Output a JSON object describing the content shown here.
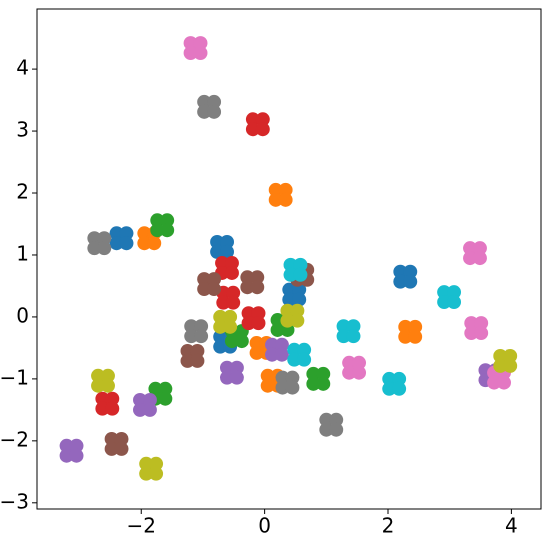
{
  "chart_data": {
    "type": "scatter",
    "xlim": [
      -3.69,
      4.48
    ],
    "ylim": [
      -3.1,
      4.97
    ],
    "xticks": [
      {
        "value": -2,
        "label": "−2"
      },
      0,
      2,
      4
    ],
    "yticks": [
      {
        "value": -3,
        "label": "−3"
      },
      {
        "value": -2,
        "label": "−2"
      },
      {
        "value": -1,
        "label": "−1"
      },
      0,
      1,
      2,
      3,
      4
    ],
    "grid": false,
    "series": [
      {
        "color": "#1f77b4",
        "x": [
          -2.4,
          -2.24,
          -2.4,
          -2.24,
          -0.77,
          -0.61,
          -0.77,
          -0.61,
          2.2,
          2.36,
          2.2,
          2.36,
          0.4,
          0.56,
          0.4,
          0.56,
          -0.72,
          -0.56,
          -0.72,
          -0.56
        ],
        "values": [
          1.35,
          1.35,
          1.19,
          1.19,
          1.21,
          1.21,
          1.05,
          1.05,
          0.73,
          0.73,
          0.57,
          0.57,
          0.44,
          0.44,
          0.28,
          0.28,
          -0.32,
          -0.32,
          -0.48,
          -0.48
        ]
      },
      {
        "color": "#ff7f0e",
        "x": [
          0.18,
          0.34,
          0.18,
          0.34,
          -1.95,
          -1.79,
          -1.95,
          -1.79,
          2.28,
          2.44,
          2.28,
          2.44,
          0.05,
          0.21,
          0.05,
          0.21,
          -0.13,
          0.03,
          -0.13,
          0.03
        ],
        "values": [
          2.05,
          2.05,
          1.89,
          1.89,
          1.35,
          1.35,
          1.19,
          1.19,
          -0.16,
          -0.16,
          -0.32,
          -0.32,
          -0.95,
          -0.95,
          -1.11,
          -1.11,
          -0.42,
          -0.42,
          -0.58,
          -0.58
        ]
      },
      {
        "color": "#2ca02c",
        "x": [
          -1.74,
          -1.58,
          -1.74,
          -1.58,
          0.21,
          0.37,
          0.21,
          0.37,
          -0.53,
          -0.37,
          -0.53,
          -0.37,
          0.79,
          0.95,
          0.79,
          0.95,
          -1.77,
          -1.61,
          -1.77,
          -1.61
        ],
        "values": [
          1.56,
          1.56,
          1.4,
          1.4,
          -0.05,
          -0.05,
          -0.21,
          -0.21,
          -0.23,
          -0.23,
          -0.39,
          -0.39,
          -0.92,
          -0.92,
          -1.08,
          -1.08,
          -1.16,
          -1.16,
          -1.32,
          -1.32
        ]
      },
      {
        "color": "#d62728",
        "x": [
          -0.19,
          -0.03,
          -0.19,
          -0.03,
          -0.69,
          -0.53,
          -0.69,
          -0.53,
          -0.67,
          -0.51,
          -0.67,
          -0.51,
          -0.26,
          -0.1,
          -0.26,
          -0.1,
          -2.63,
          -2.47,
          -2.63,
          -2.47
        ],
        "values": [
          3.19,
          3.19,
          3.03,
          3.03,
          0.87,
          0.87,
          0.71,
          0.71,
          0.39,
          0.39,
          0.23,
          0.23,
          0.06,
          0.06,
          -0.1,
          -0.1,
          -1.32,
          -1.32,
          -1.48,
          -1.48
        ]
      },
      {
        "color": "#9467bd",
        "x": [
          -3.21,
          -3.05,
          -3.21,
          -3.05,
          -2.02,
          -1.86,
          -2.02,
          -1.86,
          -0.61,
          -0.45,
          -0.61,
          -0.45,
          0.12,
          0.28,
          0.12,
          0.28,
          3.58,
          3.74,
          3.58,
          3.74
        ],
        "values": [
          -2.08,
          -2.08,
          -2.24,
          -2.24,
          -1.34,
          -1.34,
          -1.5,
          -1.5,
          -0.82,
          -0.82,
          -0.98,
          -0.98,
          -0.45,
          -0.45,
          -0.61,
          -0.61,
          -0.86,
          -0.86,
          -1.02,
          -1.02
        ]
      },
      {
        "color": "#8c564b",
        "x": [
          -0.98,
          -0.82,
          -0.98,
          -0.82,
          -0.28,
          -0.12,
          -0.28,
          -0.12,
          0.53,
          0.69,
          0.53,
          0.69,
          -1.25,
          -1.09,
          -1.25,
          -1.09,
          -2.48,
          -2.32,
          -2.48,
          -2.32
        ],
        "values": [
          0.61,
          0.61,
          0.45,
          0.45,
          0.64,
          0.64,
          0.48,
          0.48,
          0.76,
          0.76,
          0.6,
          0.6,
          -0.55,
          -0.55,
          -0.71,
          -0.71,
          -1.97,
          -1.97,
          -2.13,
          -2.13
        ]
      },
      {
        "color": "#e377c2",
        "x": [
          -1.2,
          -1.04,
          -1.2,
          -1.04,
          3.33,
          3.49,
          3.33,
          3.49,
          3.35,
          3.51,
          3.35,
          3.51,
          1.37,
          1.53,
          1.37,
          1.53,
          3.72,
          3.88,
          3.72,
          3.88
        ],
        "values": [
          4.42,
          4.42,
          4.26,
          4.26,
          1.11,
          1.11,
          0.95,
          0.95,
          -0.1,
          -0.1,
          -0.26,
          -0.26,
          -0.74,
          -0.74,
          -0.9,
          -0.9,
          -0.9,
          -0.9,
          -1.06,
          -1.06
        ]
      },
      {
        "color": "#7f7f7f",
        "x": [
          -0.98,
          -0.82,
          -0.98,
          -0.82,
          -2.76,
          -2.6,
          -2.76,
          -2.6,
          -1.19,
          -1.03,
          -1.19,
          -1.03,
          0.29,
          0.45,
          0.29,
          0.45,
          1.0,
          1.16,
          1.0,
          1.16
        ],
        "values": [
          3.47,
          3.47,
          3.31,
          3.31,
          1.27,
          1.27,
          1.11,
          1.11,
          -0.15,
          -0.15,
          -0.31,
          -0.31,
          -0.98,
          -0.98,
          -1.14,
          -1.14,
          -1.66,
          -1.66,
          -1.82,
          -1.82
        ]
      },
      {
        "color": "#bcbd22",
        "x": [
          -0.72,
          -0.56,
          -0.72,
          -0.56,
          0.37,
          0.53,
          0.37,
          0.53,
          -2.7,
          -2.54,
          -2.7,
          -2.54,
          -1.92,
          -1.76,
          -1.92,
          -1.76,
          3.82,
          3.98,
          3.82,
          3.98
        ],
        "values": [
          0,
          0,
          -0.16,
          -0.16,
          0.1,
          0.1,
          -0.06,
          -0.06,
          -0.95,
          -0.95,
          -1.11,
          -1.11,
          -2.37,
          -2.37,
          -2.53,
          -2.53,
          -0.63,
          -0.63,
          -0.79,
          -0.79
        ]
      },
      {
        "color": "#17becf",
        "x": [
          0.42,
          0.58,
          0.42,
          0.58,
          1.28,
          1.44,
          1.28,
          1.44,
          2.91,
          3.07,
          2.91,
          3.07,
          0.48,
          0.64,
          0.48,
          0.64,
          2.02,
          2.18,
          2.02,
          2.18
        ],
        "values": [
          0.84,
          0.84,
          0.68,
          0.68,
          -0.15,
          -0.15,
          -0.31,
          -0.31,
          0.4,
          0.4,
          0.24,
          0.24,
          -0.53,
          -0.53,
          -0.69,
          -0.69,
          -1.0,
          -1.0,
          -1.16,
          -1.16
        ]
      }
    ]
  }
}
